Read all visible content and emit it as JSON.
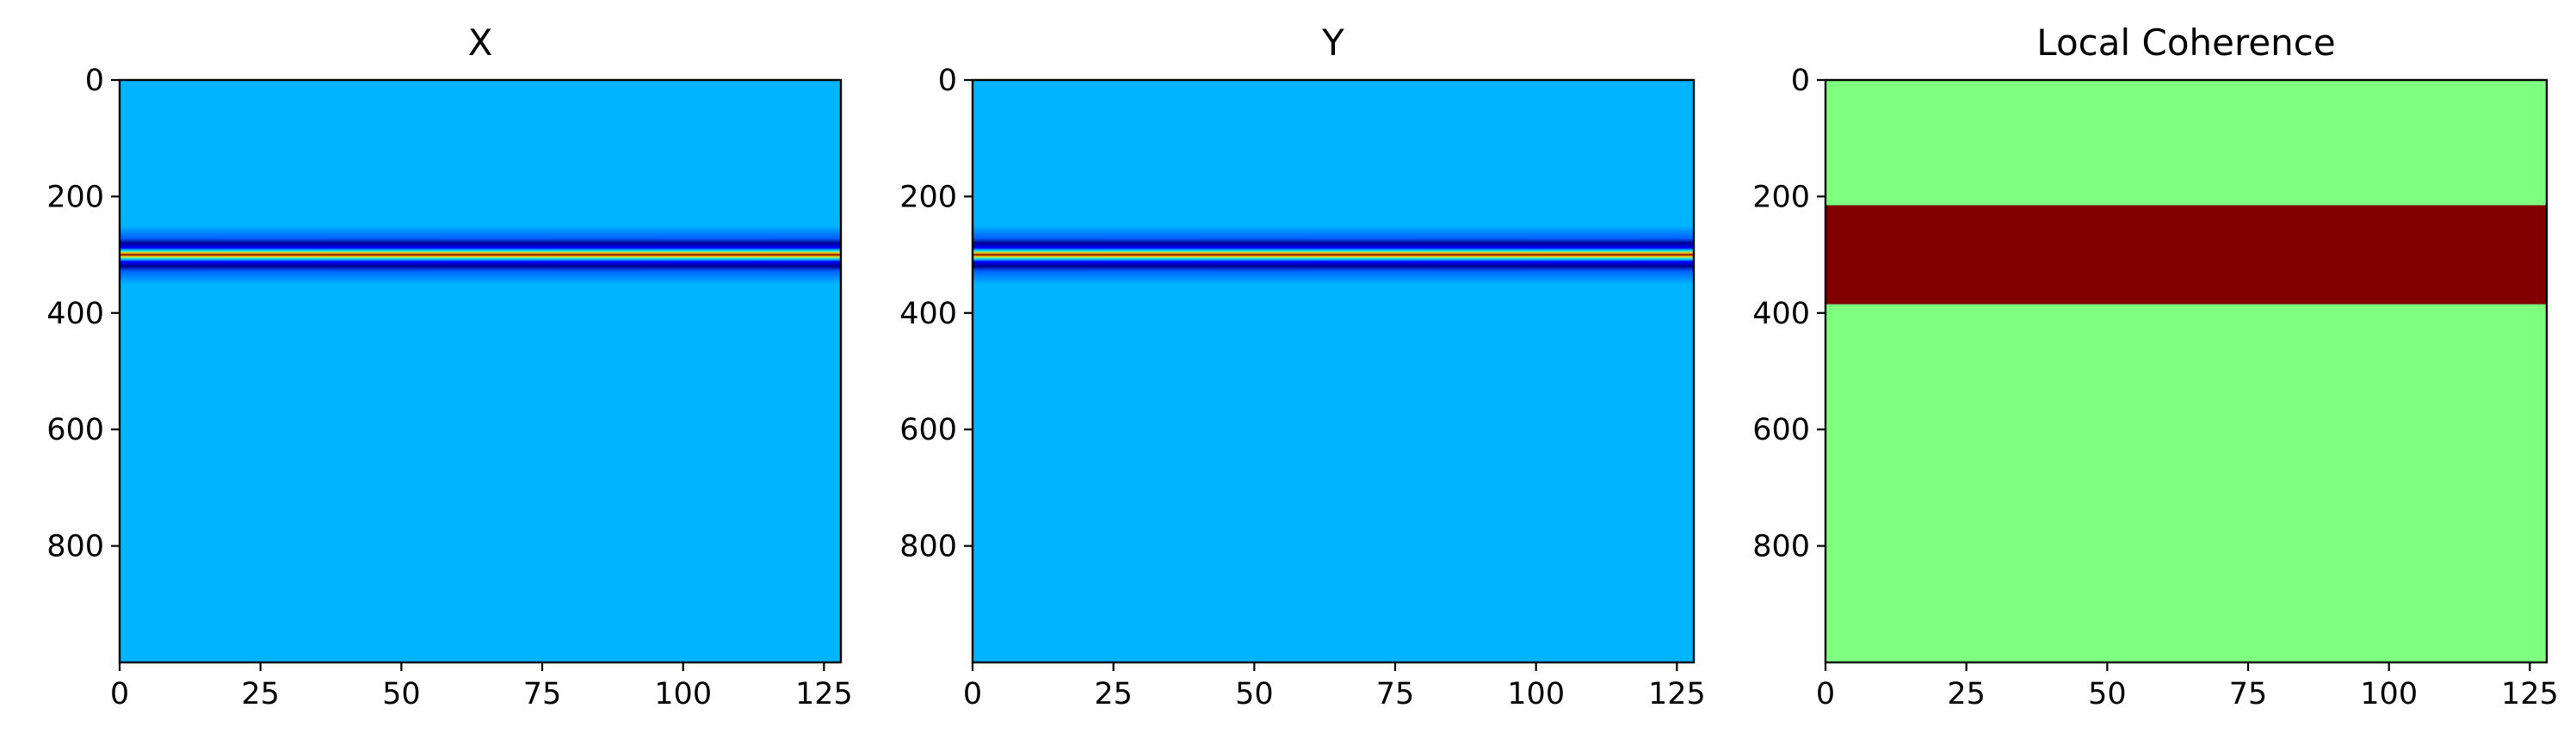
{
  "chart_data": [
    {
      "type": "heatmap",
      "title": "X",
      "xlabel": "",
      "ylabel": "",
      "xlim": [
        0,
        128
      ],
      "ylim": [
        1000,
        0
      ],
      "xticks": [
        0,
        25,
        50,
        75,
        100,
        125
      ],
      "yticks": [
        0,
        200,
        400,
        600,
        800
      ],
      "colormap": "jet",
      "background_value": 0.0,
      "background_color": "#00b4ff",
      "bands": [
        {
          "y": 250,
          "color": "#00b4ff"
        },
        {
          "y": 272,
          "color": "#0060ff"
        },
        {
          "y": 280,
          "color": "#000090"
        },
        {
          "y": 288,
          "color": "#0000ff"
        },
        {
          "y": 293,
          "color": "#00e8ff"
        },
        {
          "y": 297,
          "color": "#ffd000"
        },
        {
          "y": 300,
          "color": "#800000"
        },
        {
          "y": 303,
          "color": "#ffd000"
        },
        {
          "y": 307,
          "color": "#00e8ff"
        },
        {
          "y": 312,
          "color": "#0000ff"
        },
        {
          "y": 320,
          "color": "#000090"
        },
        {
          "y": 328,
          "color": "#0060ff"
        },
        {
          "y": 350,
          "color": "#00b4ff"
        }
      ]
    },
    {
      "type": "heatmap",
      "title": "Y",
      "xlabel": "",
      "ylabel": "",
      "xlim": [
        0,
        128
      ],
      "ylim": [
        1000,
        0
      ],
      "xticks": [
        0,
        25,
        50,
        75,
        100,
        125
      ],
      "yticks": [
        0,
        200,
        400,
        600,
        800
      ],
      "colormap": "jet",
      "background_value": 0.0,
      "background_color": "#00b4ff",
      "bands": [
        {
          "y": 250,
          "color": "#00b4ff"
        },
        {
          "y": 272,
          "color": "#0060ff"
        },
        {
          "y": 280,
          "color": "#000090"
        },
        {
          "y": 288,
          "color": "#0000ff"
        },
        {
          "y": 293,
          "color": "#00e8ff"
        },
        {
          "y": 297,
          "color": "#ffd000"
        },
        {
          "y": 300,
          "color": "#800000"
        },
        {
          "y": 303,
          "color": "#ffd000"
        },
        {
          "y": 307,
          "color": "#00e8ff"
        },
        {
          "y": 312,
          "color": "#0000ff"
        },
        {
          "y": 320,
          "color": "#000090"
        },
        {
          "y": 328,
          "color": "#0060ff"
        },
        {
          "y": 350,
          "color": "#00b4ff"
        }
      ]
    },
    {
      "type": "heatmap",
      "title": "Local Coherence",
      "xlabel": "",
      "ylabel": "",
      "xlim": [
        0,
        128
      ],
      "ylim": [
        1000,
        0
      ],
      "xticks": [
        0,
        25,
        50,
        75,
        100,
        125
      ],
      "yticks": [
        0,
        200,
        400,
        600,
        800
      ],
      "colormap": "jet",
      "background_value": 0.5,
      "background_color": "#7fff7f",
      "regions": [
        {
          "y_start": 215,
          "y_end": 385,
          "value": 1.0,
          "color": "#800000"
        }
      ]
    }
  ]
}
